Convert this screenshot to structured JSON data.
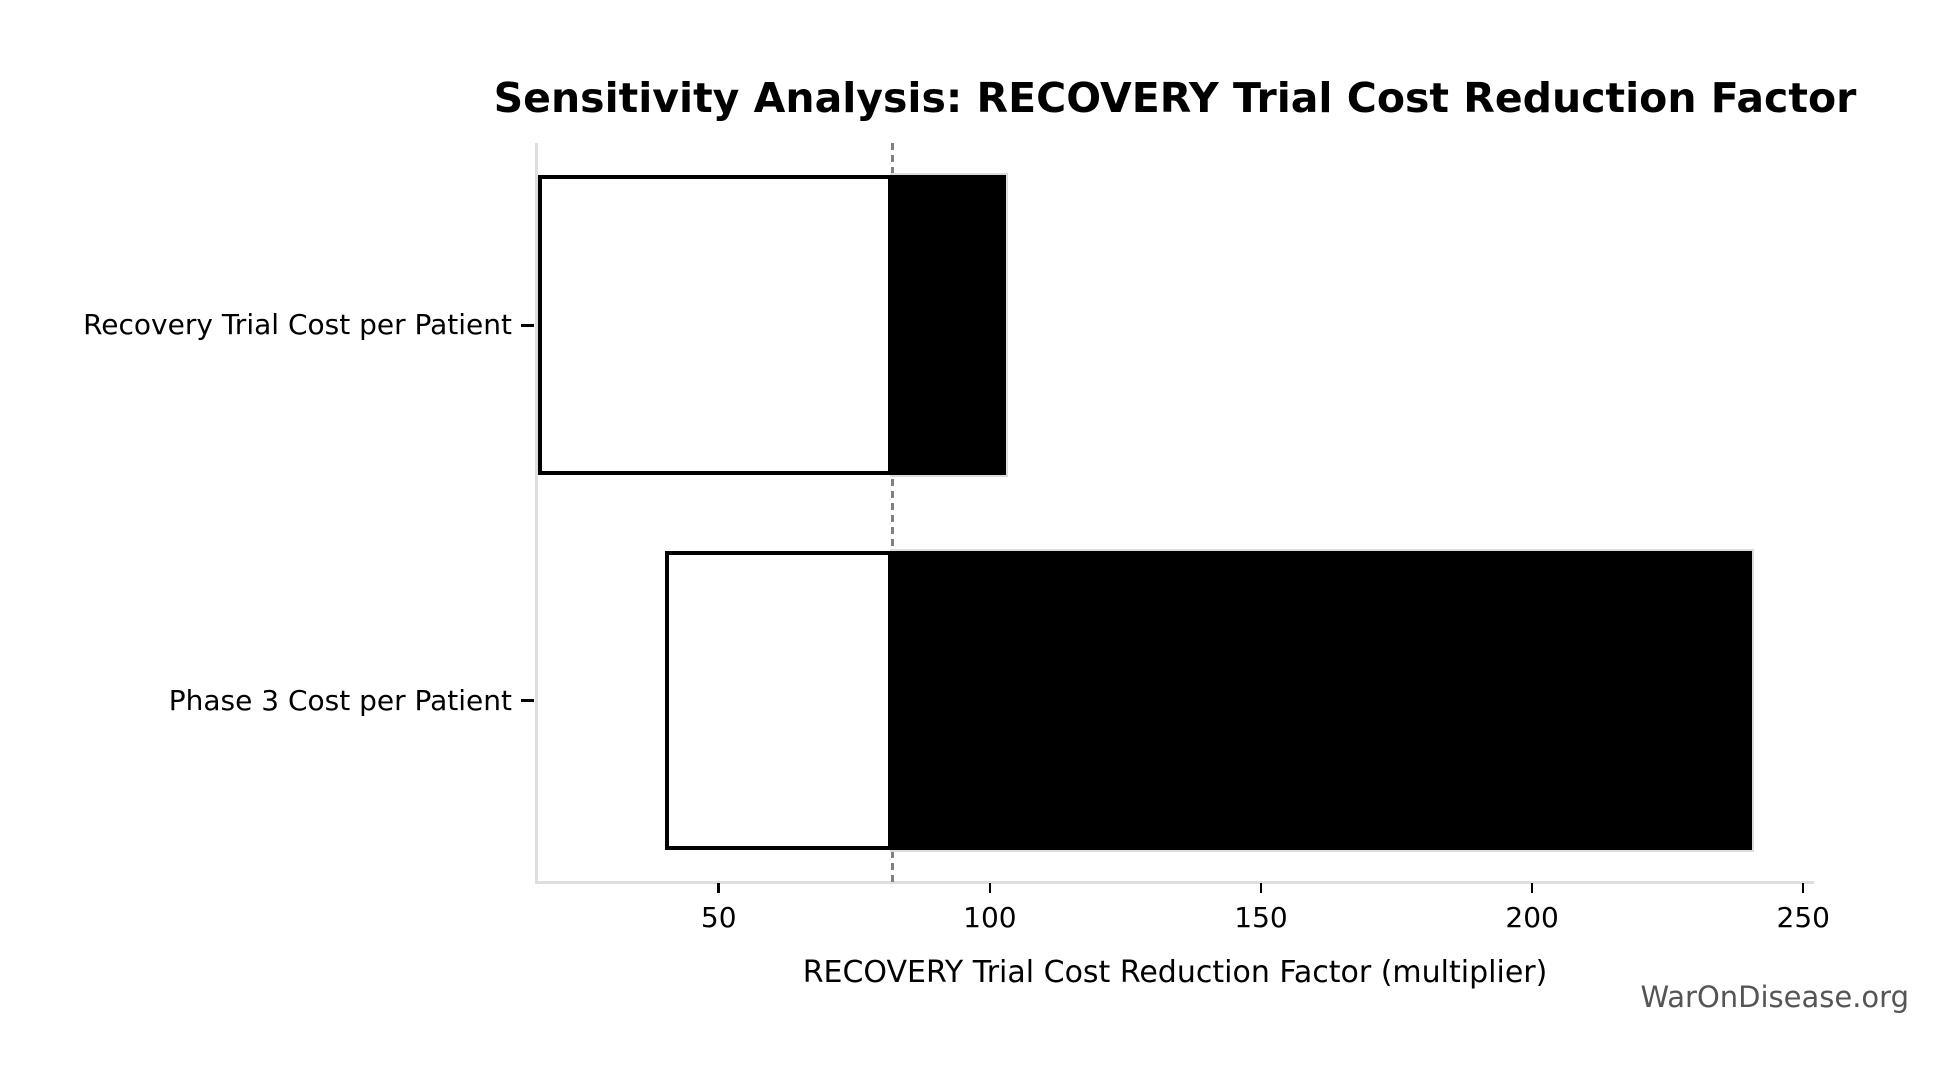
{
  "watermark": "WarOnDisease.org",
  "chart_data": {
    "type": "bar",
    "orientation": "horizontal",
    "title": "Sensitivity Analysis: RECOVERY Trial Cost Reduction Factor",
    "xlabel": "RECOVERY Trial Cost Reduction Factor (multiplier)",
    "ylabel": "",
    "categories": [
      "Recovery Trial Cost per Patient",
      "Phase 3 Cost per Patient"
    ],
    "baseline": 82,
    "bars": [
      {
        "label": "Recovery Trial Cost per Patient",
        "low": 16.6,
        "high": 103
      },
      {
        "label": "Phase 3 Cost per Patient",
        "low": 40,
        "high": 240.6
      }
    ],
    "x_ticks": [
      50,
      100,
      150,
      200,
      250
    ],
    "xlim": [
      16.3,
      251.8
    ],
    "grid": false,
    "legend": null,
    "colors": {
      "low_fill": "#ffffff",
      "high_fill": "#000000",
      "low_edge": "#000000",
      "high_edge": "#dcdcdc",
      "baseline": "#808080",
      "spine": "#dedede",
      "tick": "#000000",
      "text": "#000000",
      "watermark": "#555555"
    }
  }
}
